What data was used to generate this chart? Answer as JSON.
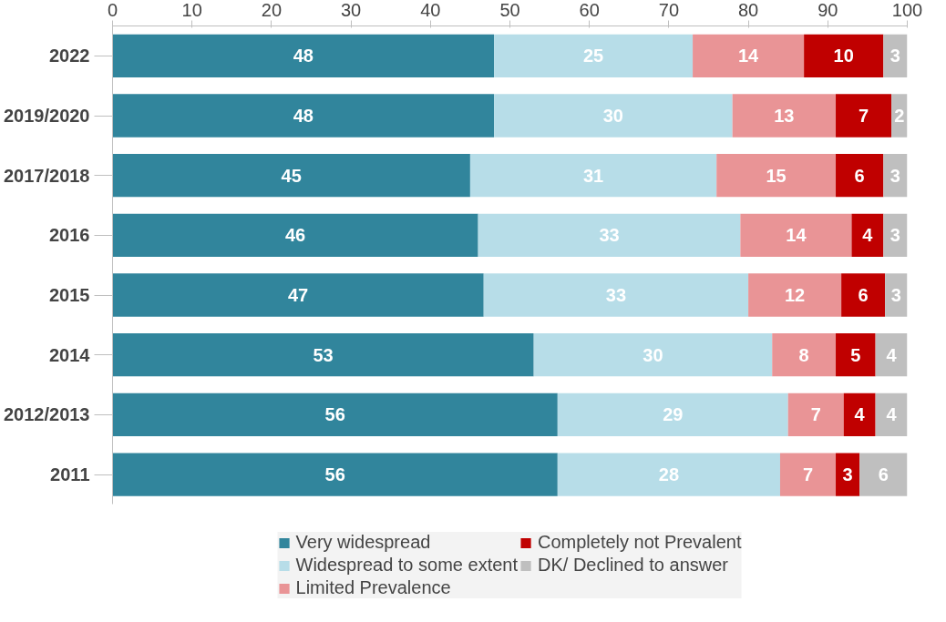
{
  "chart_data": {
    "type": "bar",
    "orientation": "horizontal",
    "stacked": true,
    "categories": [
      "2022",
      "2019/2020",
      "2017/2018",
      "2016",
      "2015",
      "2014",
      "2012/2013",
      "2011"
    ],
    "series": [
      {
        "name": "Very widespread",
        "color": "#31859c",
        "values": [
          48,
          48,
          45,
          46,
          46.7,
          53,
          56,
          56
        ],
        "value_labels": [
          "48",
          "48",
          "45",
          "46",
          "47",
          "53",
          "56",
          "56"
        ]
      },
      {
        "name": "Widespread to some extent",
        "color": "#b7dde8",
        "values": [
          25,
          30,
          31,
          33,
          33.3,
          30,
          29,
          28
        ],
        "value_labels": [
          "25",
          "30",
          "31",
          "33",
          "33",
          "30",
          "29",
          "28"
        ]
      },
      {
        "name": "Limited Prevalence",
        "color": "#e99496",
        "values": [
          14,
          13,
          15,
          14,
          11.7,
          8,
          7,
          7
        ],
        "value_labels": [
          "14",
          "13",
          "15",
          "14",
          "12",
          "8",
          "7",
          "7"
        ]
      },
      {
        "name": "Completely not Prevalent",
        "color": "#c00000",
        "values": [
          10,
          7,
          6,
          4,
          5.5,
          5,
          4,
          3
        ],
        "value_labels": [
          "10",
          "7",
          "6",
          "4",
          "6",
          "5",
          "4",
          "3"
        ]
      },
      {
        "name": "DK/ Declined to answer",
        "color": "#bfbfbf",
        "values": [
          3,
          2,
          3,
          3,
          2.8,
          4,
          4,
          6
        ],
        "value_labels": [
          "3",
          "2",
          "3",
          "3",
          "3",
          "4",
          "4",
          "6"
        ]
      }
    ],
    "xlim": [
      0,
      100
    ],
    "xticks": [
      0,
      10,
      20,
      30,
      40,
      50,
      60,
      70,
      80,
      90,
      100
    ],
    "grid": false,
    "legend": "bottom"
  }
}
